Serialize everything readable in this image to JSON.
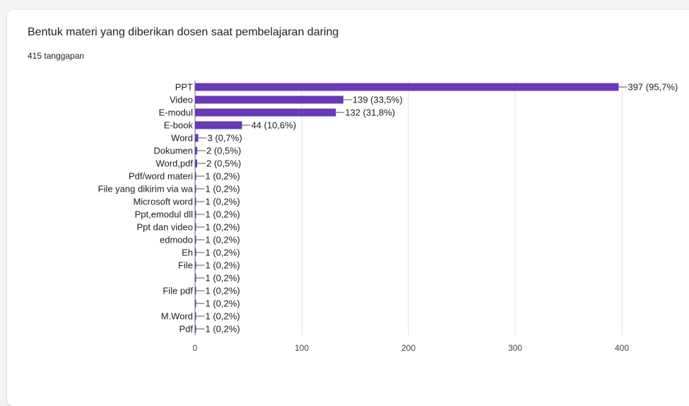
{
  "card": {
    "title": "Bentuk materi yang diberikan dosen saat pembelajaran daring",
    "subtitle": "415 tanggapan"
  },
  "chart_data": {
    "type": "bar",
    "orientation": "horizontal",
    "title": "Bentuk materi yang diberikan dosen saat pembelajaran daring",
    "subtitle": "415 tanggapan",
    "bar_color": "#673ab7",
    "xlim": [
      0,
      400
    ],
    "xticks": [
      0,
      100,
      200,
      300,
      400
    ],
    "grid": true,
    "categories": [
      "PPT",
      "Video",
      "E-modul",
      "E-book",
      "Word",
      "Dokumen",
      "Word,pdf",
      "Pdf/word materi",
      "File yang dikirim via wa",
      "Microsoft word",
      "Ppt,emodul dll",
      "Ppt dan video",
      "edmodo",
      "Eh",
      "File",
      "",
      "File pdf",
      "",
      "M.Word",
      "Pdf"
    ],
    "values": [
      397,
      139,
      132,
      44,
      3,
      2,
      2,
      1,
      1,
      1,
      1,
      1,
      1,
      1,
      1,
      1,
      1,
      1,
      1,
      1
    ],
    "value_labels": [
      "397 (95,7%)",
      "139 (33,5%)",
      "132 (31,8%)",
      "44 (10,6%)",
      "3 (0,7%)",
      "2 (0,5%)",
      "2 (0,5%)",
      "1 (0,2%)",
      "1 (0,2%)",
      "1 (0,2%)",
      "1 (0,2%)",
      "1 (0,2%)",
      "1 (0,2%)",
      "1 (0,2%)",
      "1 (0,2%)",
      "1 (0,2%)",
      "1 (0,2%)",
      "1 (0,2%)",
      "1 (0,2%)",
      "1 (0,2%)"
    ]
  }
}
